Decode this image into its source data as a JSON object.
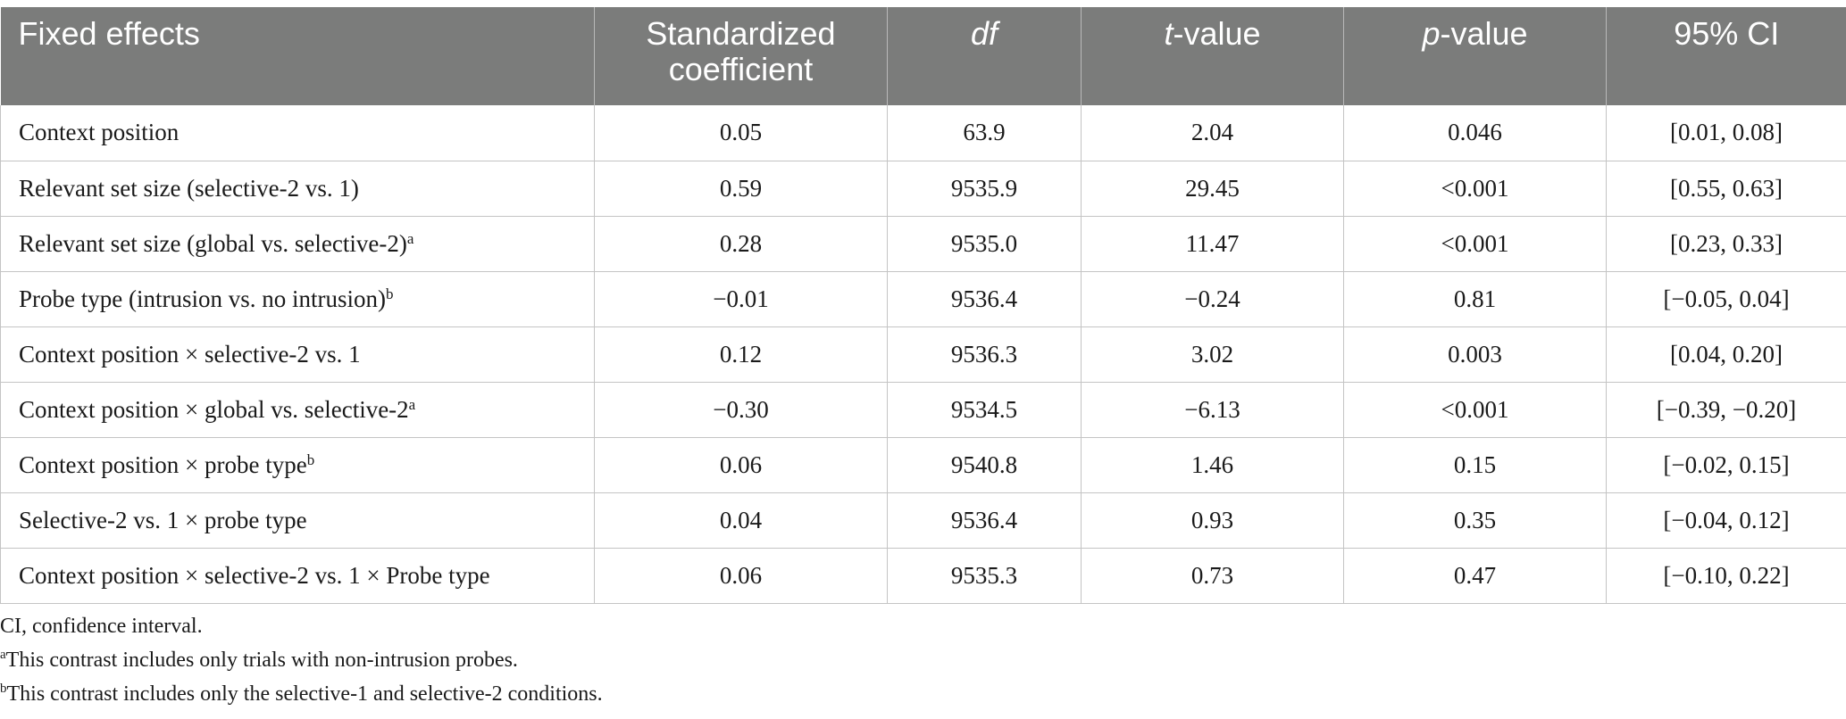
{
  "table": {
    "headers": [
      {
        "pre": "Fixed effects",
        "it": "",
        "post": ""
      },
      {
        "pre": "Standardized coefficient",
        "it": "",
        "post": ""
      },
      {
        "pre": "",
        "it": "df",
        "post": ""
      },
      {
        "pre": "",
        "it": "t",
        "post": "-value"
      },
      {
        "pre": "",
        "it": "p",
        "post": "-value"
      },
      {
        "pre": "95% CI",
        "it": "",
        "post": ""
      }
    ],
    "rows": [
      {
        "effect": "Context position",
        "sup": "",
        "coef": "0.05",
        "df": "63.9",
        "t": "2.04",
        "p": "0.046",
        "ci": "[0.01, 0.08]"
      },
      {
        "effect": "Relevant set size (selective-2 vs. 1)",
        "sup": "",
        "coef": "0.59",
        "df": "9535.9",
        "t": "29.45",
        "p": "<0.001",
        "ci": "[0.55, 0.63]"
      },
      {
        "effect": "Relevant set size (global vs. selective-2)",
        "sup": "a",
        "coef": "0.28",
        "df": "9535.0",
        "t": "11.47",
        "p": "<0.001",
        "ci": "[0.23, 0.33]"
      },
      {
        "effect": "Probe type (intrusion vs. no intrusion)",
        "sup": "b",
        "coef": "−0.01",
        "df": "9536.4",
        "t": "−0.24",
        "p": "0.81",
        "ci": "[−0.05, 0.04]"
      },
      {
        "effect": "Context position × selective-2 vs. 1",
        "sup": "",
        "coef": "0.12",
        "df": "9536.3",
        "t": "3.02",
        "p": "0.003",
        "ci": "[0.04, 0.20]"
      },
      {
        "effect": "Context position × global vs. selective-2",
        "sup": "a",
        "coef": "−0.30",
        "df": "9534.5",
        "t": "−6.13",
        "p": "<0.001",
        "ci": "[−0.39, −0.20]"
      },
      {
        "effect": "Context position × probe type",
        "sup": "b",
        "coef": "0.06",
        "df": "9540.8",
        "t": "1.46",
        "p": "0.15",
        "ci": "[−0.02, 0.15]"
      },
      {
        "effect": "Selective-2 vs. 1 × probe type",
        "sup": "",
        "coef": "0.04",
        "df": "9536.4",
        "t": "0.93",
        "p": "0.35",
        "ci": "[−0.04, 0.12]"
      },
      {
        "effect": "Context position × selective-2 vs. 1 × Probe type",
        "sup": "",
        "coef": "0.06",
        "df": "9535.3",
        "t": "0.73",
        "p": "0.47",
        "ci": "[−0.10, 0.22]"
      }
    ]
  },
  "notes": [
    {
      "sup": "",
      "text": "CI, confidence interval."
    },
    {
      "sup": "a",
      "text": "This contrast includes only trials with non-intrusion probes."
    },
    {
      "sup": "b",
      "text": "This contrast includes only the selective-1 and selective-2 conditions."
    }
  ]
}
